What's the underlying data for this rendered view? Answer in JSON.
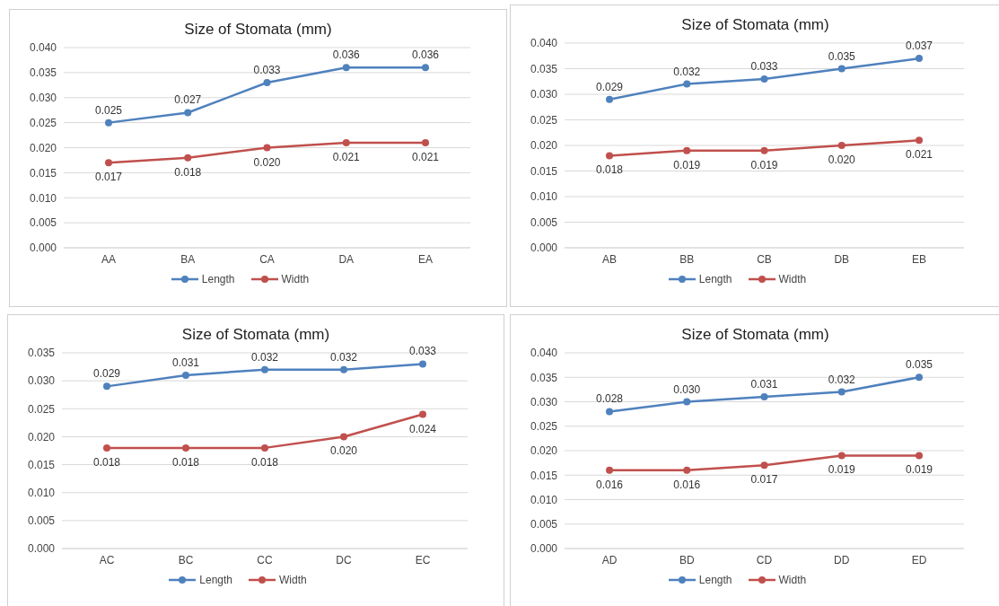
{
  "chart_data": [
    {
      "type": "line",
      "title": "Size of Stomata (mm)",
      "categories": [
        "AA",
        "BA",
        "CA",
        "DA",
        "EA"
      ],
      "series": [
        {
          "name": "Length",
          "color": "#4f81bd",
          "values": [
            0.025,
            0.027,
            0.033,
            0.036,
            0.036
          ],
          "value_labels": [
            "0.025",
            "0.027",
            "0.033",
            "0.036",
            "0.036"
          ]
        },
        {
          "name": "Width",
          "color": "#c0504d",
          "values": [
            0.017,
            0.018,
            0.02,
            0.021,
            0.021
          ],
          "value_labels": [
            "0.017",
            "0.018",
            "0.020",
            "0.021",
            "0.021"
          ]
        }
      ],
      "ylim": [
        0,
        0.04
      ],
      "yticks": [
        {
          "value": 0,
          "label": "0.000"
        },
        {
          "value": 0.005,
          "label": "0.005"
        },
        {
          "value": 0.01,
          "label": "0.010"
        },
        {
          "value": 0.015,
          "label": "0.015"
        },
        {
          "value": 0.02,
          "label": "0.020"
        },
        {
          "value": 0.025,
          "label": "0.025"
        },
        {
          "value": 0.03,
          "label": "0.030"
        },
        {
          "value": 0.035,
          "label": "0.035"
        },
        {
          "value": 0.04,
          "label": "0.040"
        }
      ],
      "grid": "y",
      "legend": "bottom",
      "marker": "circle",
      "line_style": "solid"
    },
    {
      "type": "line",
      "title": "Size of Stomata (mm)",
      "categories": [
        "AB",
        "BB",
        "CB",
        "DB",
        "EB"
      ],
      "series": [
        {
          "name": "Length",
          "color": "#4f81bd",
          "values": [
            0.029,
            0.032,
            0.033,
            0.035,
            0.037
          ],
          "value_labels": [
            "0.029",
            "0.032",
            "0.033",
            "0.035",
            "0.037"
          ]
        },
        {
          "name": "Width",
          "color": "#c0504d",
          "values": [
            0.018,
            0.019,
            0.019,
            0.02,
            0.021
          ],
          "value_labels": [
            "0.018",
            "0.019",
            "0.019",
            "0.020",
            "0.021"
          ]
        }
      ],
      "ylim": [
        0,
        0.04
      ],
      "yticks": [
        {
          "value": 0,
          "label": "0.000"
        },
        {
          "value": 0.005,
          "label": "0.005"
        },
        {
          "value": 0.01,
          "label": "0.010"
        },
        {
          "value": 0.015,
          "label": "0.015"
        },
        {
          "value": 0.02,
          "label": "0.020"
        },
        {
          "value": 0.025,
          "label": "0.025"
        },
        {
          "value": 0.03,
          "label": "0.030"
        },
        {
          "value": 0.035,
          "label": "0.035"
        },
        {
          "value": 0.04,
          "label": "0.040"
        }
      ],
      "grid": "y",
      "legend": "bottom",
      "marker": "circle",
      "line_style": "solid"
    },
    {
      "type": "line",
      "title": "Size of Stomata (mm)",
      "categories": [
        "AC",
        "BC",
        "CC",
        "DC",
        "EC"
      ],
      "series": [
        {
          "name": "Length",
          "color": "#4f81bd",
          "values": [
            0.029,
            0.031,
            0.032,
            0.032,
            0.033
          ],
          "value_labels": [
            "0.029",
            "0.031",
            "0.032",
            "0.032",
            "0.033"
          ]
        },
        {
          "name": "Width",
          "color": "#c0504d",
          "values": [
            0.018,
            0.018,
            0.018,
            0.02,
            0.024
          ],
          "value_labels": [
            "0.018",
            "0.018",
            "0.018",
            "0.020",
            "0.024"
          ]
        }
      ],
      "ylim": [
        0,
        0.035
      ],
      "yticks": [
        {
          "value": 0,
          "label": "0.000"
        },
        {
          "value": 0.005,
          "label": "0.005"
        },
        {
          "value": 0.01,
          "label": "0.010"
        },
        {
          "value": 0.015,
          "label": "0.015"
        },
        {
          "value": 0.02,
          "label": "0.020"
        },
        {
          "value": 0.025,
          "label": "0.025"
        },
        {
          "value": 0.03,
          "label": "0.030"
        },
        {
          "value": 0.035,
          "label": "0.035"
        }
      ],
      "grid": "y",
      "legend": "bottom",
      "marker": "circle",
      "line_style": "solid"
    },
    {
      "type": "line",
      "title": "Size of Stomata (mm)",
      "categories": [
        "AD",
        "BD",
        "CD",
        "DD",
        "ED"
      ],
      "series": [
        {
          "name": "Length",
          "color": "#4f81bd",
          "values": [
            0.028,
            0.03,
            0.031,
            0.032,
            0.035
          ],
          "value_labels": [
            "0.028",
            "0.030",
            "0.031",
            "0.032",
            "0.035"
          ]
        },
        {
          "name": "Width",
          "color": "#c0504d",
          "values": [
            0.016,
            0.016,
            0.017,
            0.019,
            0.019
          ],
          "value_labels": [
            "0.016",
            "0.016",
            "0.017",
            "0.019",
            "0.019"
          ]
        }
      ],
      "ylim": [
        0,
        0.04
      ],
      "yticks": [
        {
          "value": 0,
          "label": "0.000"
        },
        {
          "value": 0.005,
          "label": "0.005"
        },
        {
          "value": 0.01,
          "label": "0.010"
        },
        {
          "value": 0.015,
          "label": "0.015"
        },
        {
          "value": 0.02,
          "label": "0.020"
        },
        {
          "value": 0.025,
          "label": "0.025"
        },
        {
          "value": 0.03,
          "label": "0.030"
        },
        {
          "value": 0.035,
          "label": "0.035"
        },
        {
          "value": 0.04,
          "label": "0.040"
        }
      ],
      "grid": "y",
      "legend": "bottom",
      "marker": "circle",
      "line_style": "solid"
    }
  ]
}
